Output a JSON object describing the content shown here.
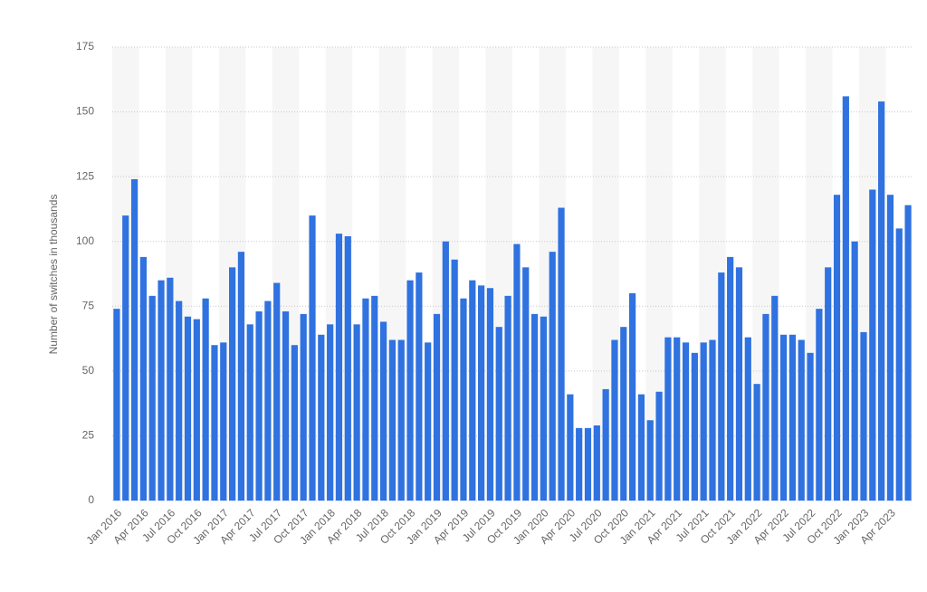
{
  "chart_data": {
    "type": "bar",
    "y_label": "Number of switches in thousands",
    "categories": [
      "Jan 2016",
      null,
      null,
      "Apr 2016",
      null,
      null,
      "Jul 2016",
      null,
      null,
      "Oct 2016",
      null,
      null,
      "Jan 2017",
      null,
      null,
      "Apr 2017",
      null,
      null,
      "Jul 2017",
      null,
      null,
      "Oct 2017",
      null,
      null,
      "Jan 2018",
      null,
      null,
      "Apr 2018",
      null,
      null,
      "Jul 2018",
      null,
      null,
      "Oct 2018",
      null,
      null,
      "Jan 2019",
      null,
      null,
      "Apr 2019",
      null,
      null,
      "Jul 2019",
      null,
      null,
      "Oct 2019",
      null,
      null,
      "Jan 2020",
      null,
      null,
      "Apr 2020",
      null,
      null,
      "Jul 2020",
      null,
      null,
      "Oct 2020",
      null,
      null,
      "Jan 2021",
      null,
      null,
      "Apr 2021",
      null,
      null,
      "Jul 2021",
      null,
      null,
      "Oct 2021",
      null,
      null,
      "Jan 2022",
      null,
      null,
      "Apr 2022",
      null,
      null,
      "Jul 2022",
      null,
      null,
      "Oct 2022",
      null,
      null,
      "Jan 2023",
      null,
      null,
      "Apr 2023",
      null,
      null
    ],
    "values": [
      74,
      110,
      124,
      94,
      79,
      85,
      86,
      77,
      71,
      70,
      78,
      60,
      61,
      90,
      96,
      68,
      73,
      77,
      84,
      73,
      60,
      72,
      110,
      64,
      68,
      103,
      102,
      68,
      78,
      79,
      69,
      62,
      62,
      85,
      88,
      61,
      72,
      100,
      93,
      78,
      85,
      83,
      82,
      67,
      79,
      99,
      90,
      72,
      71,
      96,
      113,
      41,
      28,
      28,
      29,
      43,
      62,
      67,
      80,
      41,
      31,
      42,
      63,
      63,
      61,
      57,
      61,
      62,
      88,
      94,
      90,
      63,
      45,
      72,
      79,
      64,
      64,
      62,
      57,
      74,
      90,
      118,
      156,
      100,
      65,
      120,
      154,
      118,
      105,
      114
    ],
    "color": "#2f72e0",
    "ylim": [
      0,
      175
    ],
    "yticks": [
      0,
      25,
      50,
      75,
      100,
      125,
      150,
      175
    ],
    "grid": true
  }
}
